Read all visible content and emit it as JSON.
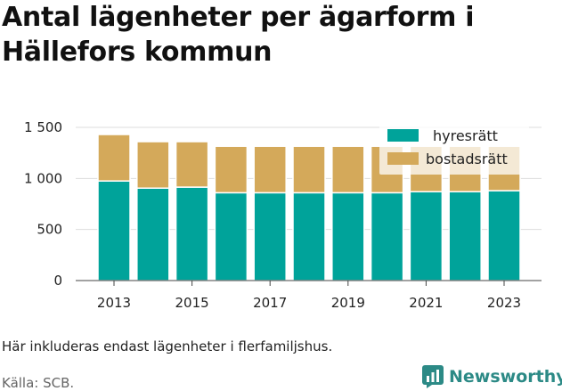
{
  "title": "Antal lägenheter per ägarform i Hällefors kommun",
  "footnote": "Här inkluderas endast lägenheter i flerfamiljshus.",
  "source": "Källa: SCB.",
  "brand": {
    "name": "Newsworthy",
    "icon": "newsworthy-chart-logo-icon",
    "color": "#2c8a86"
  },
  "chart_data": {
    "type": "bar",
    "stacked": true,
    "categories": [
      "2013",
      "2014",
      "2015",
      "2016",
      "2017",
      "2018",
      "2019",
      "2020",
      "2021",
      "2022",
      "2023"
    ],
    "x_tick_labels": [
      "2013",
      "2015",
      "2017",
      "2019",
      "2021",
      "2023"
    ],
    "series": [
      {
        "name": "hyresrätt",
        "color": "#00a39a",
        "values": [
          975,
          905,
          915,
          860,
          860,
          860,
          860,
          860,
          870,
          870,
          880
        ]
      },
      {
        "name": "bostadsrätt",
        "color": "#d4a95a",
        "values": [
          455,
          455,
          445,
          455,
          455,
          455,
          455,
          455,
          445,
          445,
          435
        ]
      }
    ],
    "y_ticks": [
      "0",
      "500",
      "1 000",
      "1 500"
    ],
    "y_tick_values": [
      0,
      500,
      1000,
      1500
    ],
    "ylim": [
      0,
      1500
    ],
    "xlabel": "",
    "ylabel": "",
    "grid": true,
    "legend": "top-right"
  }
}
